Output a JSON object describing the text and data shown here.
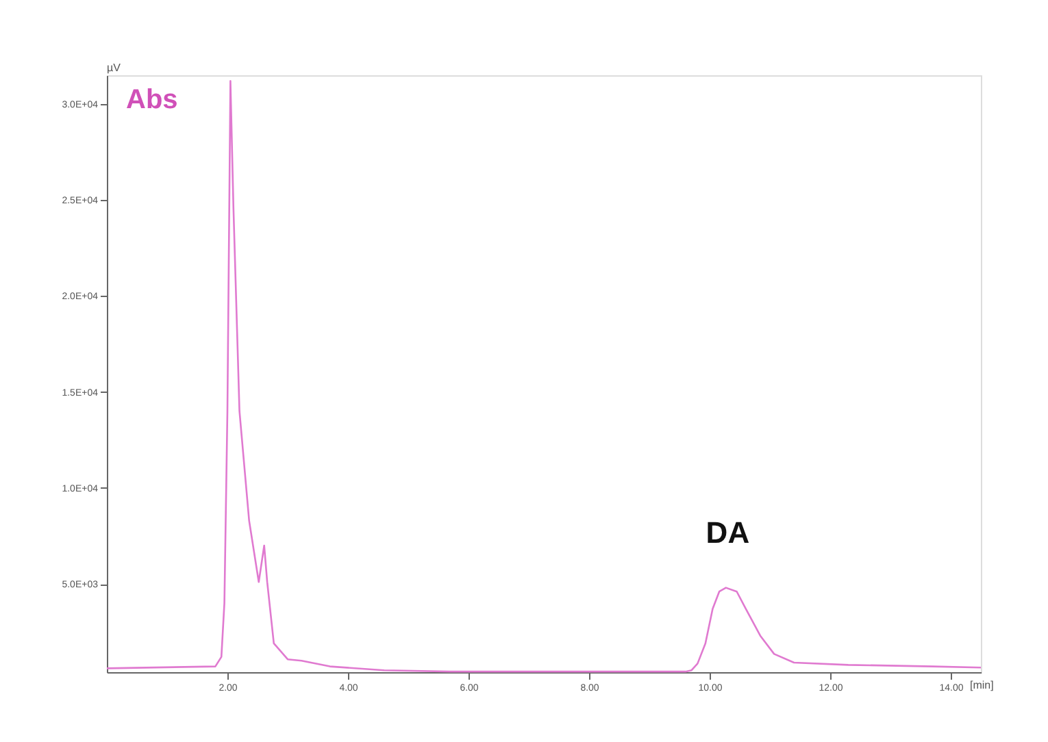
{
  "chart_data": {
    "type": "line",
    "xlabel": "[min]",
    "ylabel": "µV",
    "annotations": [
      "Abs",
      {
        "text": "DA",
        "x": 10.3,
        "y": 4800
      }
    ],
    "xlim": [
      0,
      14.5
    ],
    "ylim": [
      400,
      31500
    ],
    "xticks": [
      {
        "value": 2,
        "label": "2.00"
      },
      {
        "value": 4,
        "label": "4.00"
      },
      {
        "value": 6,
        "label": "6.00"
      },
      {
        "value": 8,
        "label": "8.00"
      },
      {
        "value": 10,
        "label": "10.00"
      },
      {
        "value": 12,
        "label": "12.00"
      },
      {
        "value": 14,
        "label": "14.00"
      }
    ],
    "yticks": [
      {
        "value": 5000,
        "label": "5.0E+03"
      },
      {
        "value": 10000,
        "label": "1.0E+04"
      },
      {
        "value": 15000,
        "label": "1.5E+04"
      },
      {
        "value": 20000,
        "label": "2.0E+04"
      },
      {
        "value": 25000,
        "label": "2.5E+04"
      },
      {
        "value": 30000,
        "label": "3.0E+04"
      }
    ],
    "grid": false,
    "marker": "none",
    "line_style": "solid",
    "series": [
      {
        "color": "#e07ad0",
        "x": [
          0,
          1.8,
          1.9,
          1.95,
          2.0,
          2.05,
          2.1,
          2.2,
          2.36,
          2.52,
          2.61,
          2.66,
          2.77,
          3.0,
          3.23,
          3.7,
          4.6,
          5.7,
          9.6,
          9.7,
          9.8,
          9.93,
          10.05,
          10.16,
          10.27,
          10.45,
          10.6,
          10.84,
          11.07,
          11.4,
          12.3,
          13.7,
          14.5
        ],
        "values": [
          600,
          700,
          1200,
          4000,
          14000,
          31200,
          24600,
          14000,
          8300,
          5100,
          7000,
          5100,
          1900,
          1070,
          1000,
          700,
          500,
          430,
          430,
          500,
          850,
          1900,
          3700,
          4600,
          4800,
          4600,
          3700,
          2300,
          1350,
          900,
          780,
          700,
          640
        ]
      }
    ]
  }
}
